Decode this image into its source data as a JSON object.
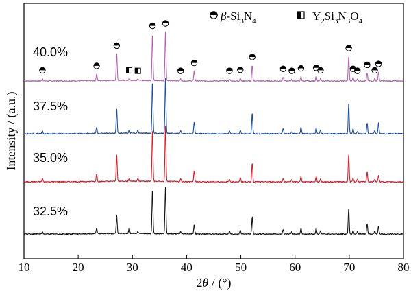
{
  "chart_data": {
    "type": "line",
    "xlabel": {
      "prefix": "2",
      "italic": "θ",
      "suffix": " / (°)"
    },
    "ylabel": "Intensity / (a.u.)",
    "xlim": [
      10,
      80
    ],
    "x_ticks": [
      10,
      20,
      30,
      40,
      50,
      60,
      70,
      80
    ],
    "y_ticks_shown": false,
    "legend": {
      "placement": "top-right",
      "items": [
        {
          "marker": "circle-half",
          "italic": "β",
          "text": "-Si",
          "sub1": "3",
          "text2": "N",
          "sub2": "4"
        },
        {
          "marker": "square-half",
          "text": "Y",
          "sub1": "2",
          "text2": "Si",
          "sub2": "3",
          "text3": "N",
          "sub3": "3",
          "text4": "O",
          "sub4": "4"
        }
      ]
    },
    "series": [
      {
        "name": "40.0%",
        "color": "#b565ad",
        "stack_order": 3
      },
      {
        "name": "37.5%",
        "color": "#1f4e9c",
        "stack_order": 2
      },
      {
        "name": "35.0%",
        "color": "#d11f2a",
        "stack_order": 1
      },
      {
        "name": "32.5%",
        "color": "#111111",
        "stack_order": 0
      }
    ],
    "peaks_2theta": [
      {
        "x": 13.4,
        "rel": [
          0.05,
          0.05,
          0.06,
          0.05
        ],
        "phase": "beta"
      },
      {
        "x": 23.4,
        "rel": [
          0.14,
          0.12,
          0.14,
          0.12
        ],
        "phase": "beta"
      },
      {
        "x": 27.1,
        "rel": [
          0.55,
          0.45,
          0.48,
          0.38
        ],
        "phase": "beta"
      },
      {
        "x": 29.4,
        "rel": [
          0.05,
          0.06,
          0.06,
          0.12
        ],
        "phase": "Y2Si3N3O4"
      },
      {
        "x": 31.0,
        "rel": [
          0.04,
          0.05,
          0.05,
          0.05
        ],
        "phase": "Y2Si3N3O4"
      },
      {
        "x": 33.7,
        "rel": [
          0.95,
          0.95,
          0.95,
          0.95
        ],
        "phase": "beta"
      },
      {
        "x": 36.1,
        "rel": [
          1.0,
          1.0,
          1.0,
          1.0
        ],
        "phase": "beta"
      },
      {
        "x": 38.9,
        "rel": [
          0.04,
          0.05,
          0.05,
          0.05
        ],
        "phase": "beta"
      },
      {
        "x": 41.4,
        "rel": [
          0.2,
          0.22,
          0.2,
          0.2
        ],
        "phase": "beta"
      },
      {
        "x": 47.9,
        "rel": [
          0.04,
          0.05,
          0.04,
          0.06
        ],
        "phase": "beta"
      },
      {
        "x": 49.9,
        "rel": [
          0.06,
          0.07,
          0.08,
          0.09
        ],
        "phase": "beta"
      },
      {
        "x": 52.1,
        "rel": [
          0.32,
          0.38,
          0.35,
          0.37
        ],
        "phase": "beta"
      },
      {
        "x": 57.8,
        "rel": [
          0.08,
          0.1,
          0.06,
          0.1
        ],
        "phase": "beta"
      },
      {
        "x": 59.4,
        "rel": [
          0.04,
          0.04,
          0.04,
          0.05
        ],
        "phase": "beta"
      },
      {
        "x": 61.1,
        "rel": [
          0.09,
          0.13,
          0.1,
          0.13
        ],
        "phase": "beta"
      },
      {
        "x": 63.9,
        "rel": [
          0.1,
          0.11,
          0.1,
          0.12
        ],
        "phase": "beta"
      },
      {
        "x": 64.7,
        "rel": [
          0.05,
          0.07,
          0.05,
          0.07
        ],
        "phase": "beta"
      },
      {
        "x": 69.9,
        "rel": [
          0.5,
          0.55,
          0.5,
          0.55
        ],
        "phase": "beta"
      },
      {
        "x": 70.7,
        "rel": [
          0.08,
          0.1,
          0.07,
          0.08
        ],
        "phase": "beta"
      },
      {
        "x": 71.5,
        "rel": [
          0.04,
          0.05,
          0.05,
          0.05
        ],
        "phase": "beta"
      },
      {
        "x": 73.3,
        "rel": [
          0.16,
          0.2,
          0.18,
          0.22
        ],
        "phase": "beta"
      },
      {
        "x": 74.7,
        "rel": [
          0.05,
          0.06,
          0.05,
          0.06
        ],
        "phase": "beta"
      },
      {
        "x": 75.4,
        "rel": [
          0.18,
          0.2,
          0.12,
          0.17
        ],
        "phase": "beta"
      }
    ],
    "grid": false
  }
}
